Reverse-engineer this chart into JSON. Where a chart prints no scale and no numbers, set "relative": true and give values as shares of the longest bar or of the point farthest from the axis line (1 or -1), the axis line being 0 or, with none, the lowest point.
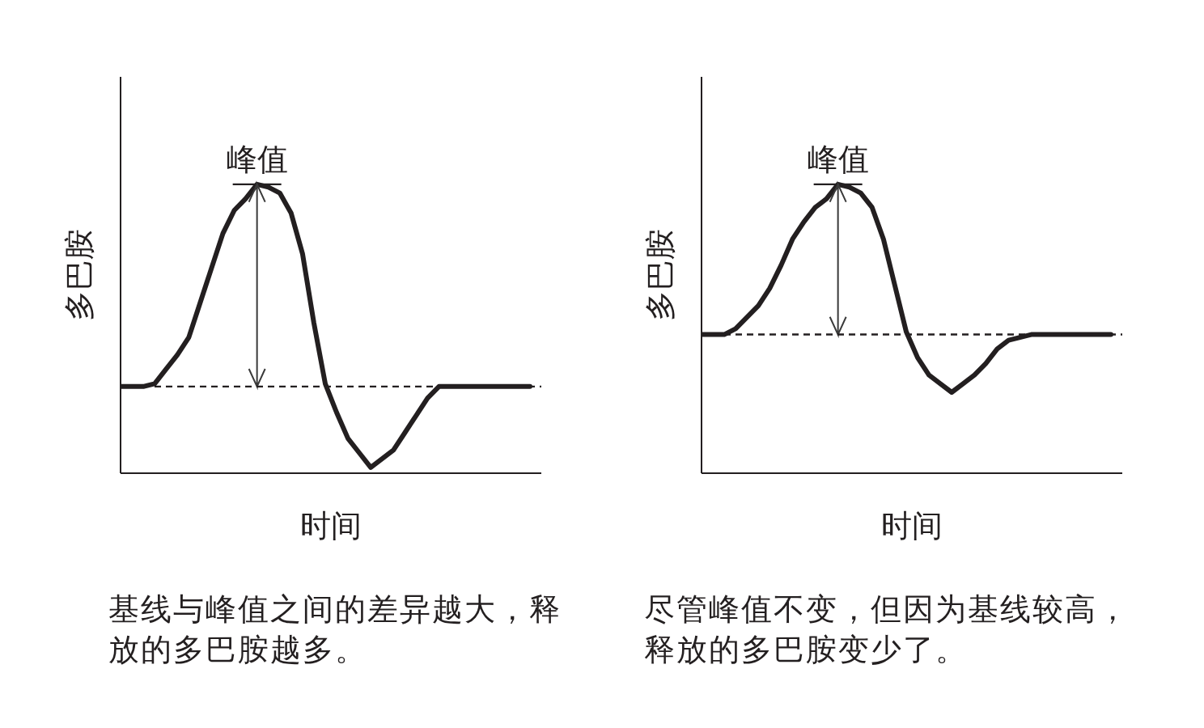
{
  "chart_data": [
    {
      "type": "line",
      "relative": true,
      "xlabel": "时间",
      "ylabel": "多巴胺",
      "categories": [
        null,
        null,
        null,
        null,
        null,
        null,
        null,
        null,
        null,
        null,
        null,
        null,
        null,
        null,
        null,
        null,
        null,
        null,
        null,
        null,
        null,
        null,
        null,
        null,
        null,
        null,
        null,
        null,
        null,
        null,
        null,
        null,
        null,
        null,
        null,
        null,
        null
      ],
      "series": [
        {
          "color": "#231f20",
          "values": [
            0.3,
            0.3,
            0.3,
            0.31,
            0.36,
            0.41,
            0.47,
            0.59,
            0.71,
            0.83,
            0.91,
            0.95,
            1,
            0.99,
            0.97,
            0.9,
            0.76,
            0.52,
            0.31,
            0.21,
            0.12,
            0.07,
            0.02,
            0.05,
            0.08,
            0.14,
            0.2,
            0.26,
            0.3,
            0.3,
            0.3,
            0.3,
            0.3,
            0.3,
            0.3,
            0.3,
            0.3
          ]
        }
      ],
      "ref_lines": [
        {
          "axis": "y",
          "value": 0.3,
          "line_style": "dashed",
          "color": "#231f20"
        }
      ],
      "annotations": [
        {
          "text": "峰值",
          "y": 1
        },
        "基线与峰值之间的差异越大，释放的多巴胺越多。"
      ]
    },
    {
      "type": "line",
      "relative": true,
      "xlabel": "时间",
      "ylabel": "多巴胺",
      "categories": [
        null,
        null,
        null,
        null,
        null,
        null,
        null,
        null,
        null,
        null,
        null,
        null,
        null,
        null,
        null,
        null,
        null,
        null,
        null,
        null,
        null,
        null,
        null,
        null,
        null,
        null,
        null,
        null,
        null,
        null,
        null,
        null,
        null,
        null,
        null,
        null,
        null
      ],
      "series": [
        {
          "color": "#231f20",
          "values": [
            0.48,
            0.48,
            0.48,
            0.5,
            0.54,
            0.58,
            0.64,
            0.72,
            0.81,
            0.87,
            0.92,
            0.95,
            1,
            0.99,
            0.97,
            0.92,
            0.81,
            0.65,
            0.49,
            0.4,
            0.34,
            0.31,
            0.28,
            0.31,
            0.34,
            0.38,
            0.43,
            0.46,
            0.47,
            0.48,
            0.48,
            0.48,
            0.48,
            0.48,
            0.48,
            0.48,
            0.48
          ]
        }
      ],
      "ref_lines": [
        {
          "axis": "y",
          "value": 0.48,
          "line_style": "dashed",
          "color": "#231f20"
        }
      ],
      "annotations": [
        {
          "text": "峰值",
          "y": 1
        },
        "尽管峰值不变，但因为基线较高，释放的多巴胺变少了。"
      ]
    }
  ]
}
